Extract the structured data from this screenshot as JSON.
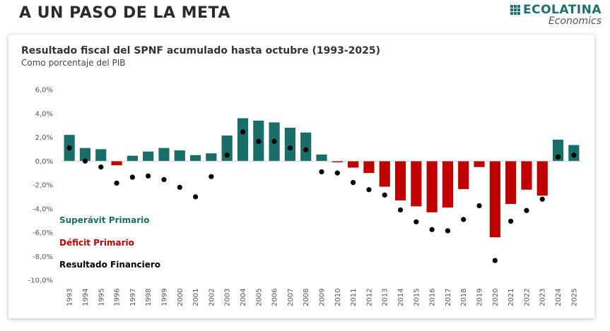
{
  "header": {
    "headline": "A UN PASO DE LA META",
    "logo_name": "ECOLATINA",
    "logo_sub": "Economics",
    "logo_icon": "grid-squares-icon"
  },
  "colors": {
    "surplus": "#1a6e6a",
    "deficit": "#c00000",
    "financial": "#000000",
    "axis_text": "#555555"
  },
  "chart_data": {
    "type": "bar",
    "title": "Resultado fiscal del SPNF acumulado hasta octubre (1993-2025)",
    "subtitle": "Como porcentaje del PIB",
    "xlabel": "",
    "ylabel": "",
    "ylim": [
      -10,
      6
    ],
    "yticks": [
      6,
      4,
      2,
      0,
      -2,
      -4,
      -6,
      -8,
      -10
    ],
    "ytick_labels": [
      "6,0%",
      "4,0%",
      "2,0%",
      "0,0%",
      "-2,0%",
      "-4,0%",
      "-6,0%",
      "-8,0%",
      "-10,0%"
    ],
    "grid": false,
    "legend_position": "bottom-left",
    "categories": [
      "1993",
      "1994",
      "1995",
      "1996",
      "1997",
      "1998",
      "1999",
      "2000",
      "2001",
      "2002",
      "2003",
      "2004",
      "2005",
      "2006",
      "2007",
      "2008",
      "2009",
      "2010",
      "2011",
      "2012",
      "2013",
      "2014",
      "2015",
      "2016",
      "2017",
      "2018",
      "2019",
      "2020",
      "2021",
      "2022",
      "2023",
      "2024",
      "2025"
    ],
    "series": [
      {
        "name": "Resultado Primario",
        "type": "bar",
        "legend_positive": "Superávit Primario",
        "legend_negative": "Déficit Primario",
        "values": [
          2.2,
          1.1,
          1.0,
          -0.35,
          0.45,
          0.8,
          1.1,
          0.9,
          0.5,
          0.65,
          2.15,
          3.6,
          3.4,
          3.25,
          2.8,
          2.4,
          0.55,
          -0.1,
          -0.55,
          -1.0,
          -2.15,
          -3.3,
          -3.8,
          -4.3,
          -3.9,
          -2.35,
          -0.5,
          -6.4,
          -3.6,
          -2.4,
          -2.9,
          1.8,
          1.35
        ]
      },
      {
        "name": "Resultado Financiero",
        "type": "scatter",
        "values": [
          1.1,
          0.0,
          -0.5,
          -1.85,
          -1.35,
          -1.25,
          -1.55,
          -2.2,
          -3.0,
          -1.3,
          0.5,
          2.45,
          1.65,
          1.65,
          1.1,
          0.95,
          -0.9,
          -1.0,
          -1.8,
          -2.4,
          -2.85,
          -4.1,
          -5.1,
          -5.75,
          -5.85,
          -4.9,
          -3.75,
          -8.35,
          -5.05,
          -4.15,
          -3.2,
          0.35,
          0.5
        ]
      }
    ],
    "legend": [
      "Superávit Primario",
      "Déficit Primario",
      "Resultado Financiero"
    ]
  }
}
